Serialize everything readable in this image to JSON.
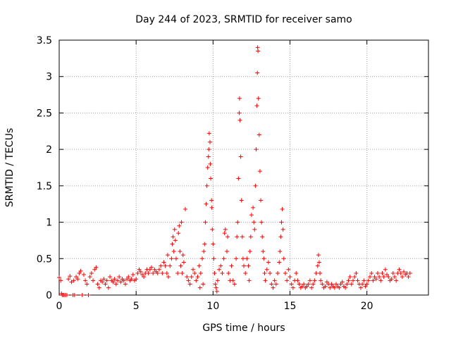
{
  "chart_data": {
    "type": "scatter",
    "title": "Day 244 of 2023, SRMTID for receiver samo",
    "xlabel": "GPS time / hours",
    "ylabel": "SRMTID / TECUs",
    "xlim": [
      0,
      24
    ],
    "ylim": [
      0,
      3.5
    ],
    "grid": true,
    "marker": "+",
    "colors": {
      "series": "#ff0000",
      "grid": "#a0a0a0",
      "axis": "#000000"
    },
    "xticks": [
      {
        "value": 0,
        "label": "0"
      },
      {
        "value": 5,
        "label": "5"
      },
      {
        "value": 10,
        "label": "10"
      },
      {
        "value": 15,
        "label": "15"
      },
      {
        "value": 20,
        "label": "20"
      }
    ],
    "yticks": [
      {
        "value": 0,
        "label": "0"
      },
      {
        "value": 0.5,
        "label": "0.5"
      },
      {
        "value": 1,
        "label": "1"
      },
      {
        "value": 1.5,
        "label": "1.5"
      },
      {
        "value": 2,
        "label": "2"
      },
      {
        "value": 2.5,
        "label": "2.5"
      },
      {
        "value": 3,
        "label": "3"
      },
      {
        "value": 3.5,
        "label": "3.5"
      }
    ],
    "series": [
      {
        "name": "SRMTID",
        "points": [
          [
            0.0,
            0.24
          ],
          [
            0.1,
            0.2
          ],
          [
            0.15,
            0.02
          ],
          [
            0.2,
            0.0
          ],
          [
            0.3,
            0.0
          ],
          [
            0.4,
            0.0
          ],
          [
            0.5,
            0.0
          ],
          [
            0.6,
            0.22
          ],
          [
            0.7,
            0.26
          ],
          [
            0.8,
            0.18
          ],
          [
            0.9,
            0.0
          ],
          [
            0.95,
            0.2
          ],
          [
            1.0,
            0.0
          ],
          [
            1.1,
            0.25
          ],
          [
            1.2,
            0.22
          ],
          [
            1.3,
            0.3
          ],
          [
            1.4,
            0.33
          ],
          [
            1.5,
            0.0
          ],
          [
            1.6,
            0.28
          ],
          [
            1.7,
            0.2
          ],
          [
            1.8,
            0.15
          ],
          [
            1.9,
            0.0
          ],
          [
            2.0,
            0.25
          ],
          [
            2.1,
            0.3
          ],
          [
            2.2,
            0.2
          ],
          [
            2.3,
            0.35
          ],
          [
            2.4,
            0.38
          ],
          [
            2.5,
            0.15
          ],
          [
            2.6,
            0.1
          ],
          [
            2.7,
            0.2
          ],
          [
            2.8,
            0.18
          ],
          [
            2.9,
            0.22
          ],
          [
            3.0,
            0.15
          ],
          [
            3.1,
            0.2
          ],
          [
            3.2,
            0.1
          ],
          [
            3.3,
            0.25
          ],
          [
            3.4,
            0.2
          ],
          [
            3.5,
            0.18
          ],
          [
            3.6,
            0.22
          ],
          [
            3.7,
            0.15
          ],
          [
            3.8,
            0.2
          ],
          [
            3.9,
            0.25
          ],
          [
            4.0,
            0.18
          ],
          [
            4.1,
            0.22
          ],
          [
            4.2,
            0.2
          ],
          [
            4.3,
            0.15
          ],
          [
            4.4,
            0.22
          ],
          [
            4.5,
            0.25
          ],
          [
            4.6,
            0.2
          ],
          [
            4.7,
            0.22
          ],
          [
            4.8,
            0.28
          ],
          [
            4.9,
            0.2
          ],
          [
            5.0,
            0.22
          ],
          [
            5.1,
            0.3
          ],
          [
            5.2,
            0.35
          ],
          [
            5.3,
            0.32
          ],
          [
            5.4,
            0.28
          ],
          [
            5.5,
            0.25
          ],
          [
            5.6,
            0.3
          ],
          [
            5.7,
            0.35
          ],
          [
            5.8,
            0.3
          ],
          [
            5.9,
            0.35
          ],
          [
            6.0,
            0.38
          ],
          [
            6.1,
            0.3
          ],
          [
            6.2,
            0.35
          ],
          [
            6.3,
            0.32
          ],
          [
            6.4,
            0.3
          ],
          [
            6.5,
            0.35
          ],
          [
            6.6,
            0.4
          ],
          [
            6.7,
            0.3
          ],
          [
            6.8,
            0.45
          ],
          [
            6.9,
            0.4
          ],
          [
            7.0,
            0.3
          ],
          [
            7.05,
            0.55
          ],
          [
            7.1,
            0.25
          ],
          [
            7.2,
            0.4
          ],
          [
            7.3,
            0.5
          ],
          [
            7.35,
            0.7
          ],
          [
            7.4,
            0.8
          ],
          [
            7.45,
            0.6
          ],
          [
            7.5,
            0.9
          ],
          [
            7.55,
            0.75
          ],
          [
            7.6,
            0.5
          ],
          [
            7.7,
            0.3
          ],
          [
            7.75,
            0.85
          ],
          [
            7.8,
            0.95
          ],
          [
            7.85,
            0.6
          ],
          [
            7.9,
            0.4
          ],
          [
            7.95,
            1.0
          ],
          [
            8.0,
            0.3
          ],
          [
            8.05,
            0.55
          ],
          [
            8.1,
            0.45
          ],
          [
            8.2,
            1.18
          ],
          [
            8.3,
            0.25
          ],
          [
            8.4,
            0.2
          ],
          [
            8.5,
            0.15
          ],
          [
            8.6,
            0.25
          ],
          [
            8.7,
            0.35
          ],
          [
            8.8,
            0.3
          ],
          [
            8.9,
            0.2
          ],
          [
            9.0,
            0.25
          ],
          [
            9.1,
            0.4
          ],
          [
            9.15,
            0.1
          ],
          [
            9.2,
            0.3
          ],
          [
            9.3,
            0.5
          ],
          [
            9.35,
            0.15
          ],
          [
            9.4,
            0.6
          ],
          [
            9.45,
            0.7
          ],
          [
            9.5,
            1.0
          ],
          [
            9.55,
            1.25
          ],
          [
            9.6,
            1.5
          ],
          [
            9.65,
            1.75
          ],
          [
            9.7,
            1.9
          ],
          [
            9.72,
            2.0
          ],
          [
            9.75,
            2.22
          ],
          [
            9.8,
            2.1
          ],
          [
            9.82,
            1.8
          ],
          [
            9.85,
            1.6
          ],
          [
            9.9,
            1.3
          ],
          [
            9.92,
            1.2
          ],
          [
            9.95,
            0.9
          ],
          [
            10.0,
            0.7
          ],
          [
            10.05,
            0.5
          ],
          [
            10.1,
            0.3
          ],
          [
            10.15,
            0.15
          ],
          [
            10.2,
            0.1
          ],
          [
            10.25,
            0.05
          ],
          [
            10.3,
            0.2
          ],
          [
            10.4,
            0.35
          ],
          [
            10.5,
            0.4
          ],
          [
            10.6,
            0.3
          ],
          [
            10.7,
            0.5
          ],
          [
            10.75,
            0.85
          ],
          [
            10.8,
            0.9
          ],
          [
            10.9,
            0.6
          ],
          [
            10.95,
            0.8
          ],
          [
            11.0,
            0.3
          ],
          [
            11.1,
            0.2
          ],
          [
            11.2,
            0.4
          ],
          [
            11.3,
            0.2
          ],
          [
            11.4,
            0.15
          ],
          [
            11.5,
            0.5
          ],
          [
            11.55,
            0.8
          ],
          [
            11.6,
            1.0
          ],
          [
            11.65,
            1.6
          ],
          [
            11.7,
            2.5
          ],
          [
            11.72,
            2.7
          ],
          [
            11.75,
            2.4
          ],
          [
            11.8,
            1.9
          ],
          [
            11.85,
            1.3
          ],
          [
            11.9,
            0.8
          ],
          [
            11.95,
            0.5
          ],
          [
            12.0,
            0.4
          ],
          [
            12.1,
            0.3
          ],
          [
            12.2,
            0.5
          ],
          [
            12.3,
            0.4
          ],
          [
            12.35,
            0.2
          ],
          [
            12.4,
            0.6
          ],
          [
            12.45,
            0.8
          ],
          [
            12.5,
            1.1
          ],
          [
            12.6,
            1.2
          ],
          [
            12.65,
            1.0
          ],
          [
            12.7,
            0.9
          ],
          [
            12.75,
            1.5
          ],
          [
            12.8,
            2.0
          ],
          [
            12.85,
            2.6
          ],
          [
            12.88,
            3.05
          ],
          [
            12.9,
            3.4
          ],
          [
            12.92,
            3.35
          ],
          [
            12.95,
            2.7
          ],
          [
            13.0,
            2.2
          ],
          [
            13.05,
            1.7
          ],
          [
            13.1,
            1.3
          ],
          [
            13.15,
            1.0
          ],
          [
            13.2,
            0.8
          ],
          [
            13.25,
            0.6
          ],
          [
            13.3,
            0.5
          ],
          [
            13.35,
            0.3
          ],
          [
            13.4,
            0.2
          ],
          [
            13.5,
            0.35
          ],
          [
            13.6,
            0.45
          ],
          [
            13.7,
            0.3
          ],
          [
            13.8,
            0.15
          ],
          [
            13.9,
            0.1
          ],
          [
            14.0,
            0.2
          ],
          [
            14.1,
            0.15
          ],
          [
            14.2,
            0.3
          ],
          [
            14.3,
            0.45
          ],
          [
            14.35,
            0.6
          ],
          [
            14.4,
            0.8
          ],
          [
            14.45,
            1.0
          ],
          [
            14.5,
            1.18
          ],
          [
            14.55,
            0.9
          ],
          [
            14.6,
            0.5
          ],
          [
            14.7,
            0.3
          ],
          [
            14.8,
            0.2
          ],
          [
            14.9,
            0.35
          ],
          [
            15.0,
            0.25
          ],
          [
            15.1,
            0.15
          ],
          [
            15.2,
            0.1
          ],
          [
            15.3,
            0.2
          ],
          [
            15.4,
            0.3
          ],
          [
            15.5,
            0.2
          ],
          [
            15.6,
            0.15
          ],
          [
            15.7,
            0.1
          ],
          [
            15.8,
            0.12
          ],
          [
            15.9,
            0.15
          ],
          [
            16.0,
            0.1
          ],
          [
            16.1,
            0.12
          ],
          [
            16.2,
            0.15
          ],
          [
            16.3,
            0.2
          ],
          [
            16.4,
            0.1
          ],
          [
            16.5,
            0.15
          ],
          [
            16.6,
            0.2
          ],
          [
            16.7,
            0.3
          ],
          [
            16.8,
            0.4
          ],
          [
            16.85,
            0.55
          ],
          [
            16.9,
            0.45
          ],
          [
            16.95,
            0.3
          ],
          [
            17.0,
            0.2
          ],
          [
            17.1,
            0.15
          ],
          [
            17.2,
            0.1
          ],
          [
            17.3,
            0.12
          ],
          [
            17.4,
            0.18
          ],
          [
            17.5,
            0.15
          ],
          [
            17.6,
            0.1
          ],
          [
            17.7,
            0.15
          ],
          [
            17.8,
            0.12
          ],
          [
            17.9,
            0.1
          ],
          [
            18.0,
            0.15
          ],
          [
            18.1,
            0.12
          ],
          [
            18.2,
            0.1
          ],
          [
            18.3,
            0.15
          ],
          [
            18.4,
            0.18
          ],
          [
            18.5,
            0.12
          ],
          [
            18.6,
            0.1
          ],
          [
            18.7,
            0.15
          ],
          [
            18.8,
            0.2
          ],
          [
            18.9,
            0.25
          ],
          [
            19.0,
            0.15
          ],
          [
            19.1,
            0.2
          ],
          [
            19.2,
            0.25
          ],
          [
            19.3,
            0.3
          ],
          [
            19.4,
            0.2
          ],
          [
            19.5,
            0.15
          ],
          [
            19.6,
            0.1
          ],
          [
            19.7,
            0.15
          ],
          [
            19.8,
            0.2
          ],
          [
            19.9,
            0.12
          ],
          [
            20.0,
            0.15
          ],
          [
            20.1,
            0.2
          ],
          [
            20.2,
            0.25
          ],
          [
            20.3,
            0.3
          ],
          [
            20.4,
            0.2
          ],
          [
            20.5,
            0.25
          ],
          [
            20.6,
            0.22
          ],
          [
            20.7,
            0.3
          ],
          [
            20.8,
            0.25
          ],
          [
            20.9,
            0.2
          ],
          [
            21.0,
            0.3
          ],
          [
            21.1,
            0.25
          ],
          [
            21.2,
            0.35
          ],
          [
            21.3,
            0.28
          ],
          [
            21.4,
            0.25
          ],
          [
            21.5,
            0.2
          ],
          [
            21.6,
            0.22
          ],
          [
            21.7,
            0.3
          ],
          [
            21.8,
            0.25
          ],
          [
            21.9,
            0.2
          ],
          [
            22.0,
            0.3
          ],
          [
            22.1,
            0.35
          ],
          [
            22.2,
            0.3
          ],
          [
            22.3,
            0.25
          ],
          [
            22.4,
            0.32
          ],
          [
            22.5,
            0.28
          ],
          [
            22.6,
            0.3
          ],
          [
            22.7,
            0.25
          ],
          [
            22.8,
            0.3
          ]
        ]
      }
    ]
  }
}
